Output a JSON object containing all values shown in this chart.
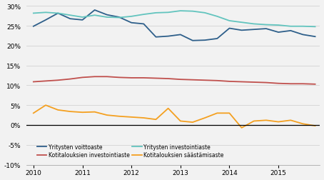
{
  "title": "",
  "ylim": [
    -0.1,
    0.305
  ],
  "yticks": [
    -0.1,
    -0.05,
    0.0,
    0.05,
    0.1,
    0.15,
    0.2,
    0.25,
    0.3
  ],
  "xlim": [
    2009.85,
    2015.85
  ],
  "xtick_labels": [
    "2010",
    "2011",
    "2012",
    "2013",
    "2014",
    "2015"
  ],
  "xtick_positions": [
    2010,
    2011,
    2012,
    2013,
    2014,
    2015
  ],
  "colors": {
    "yritys_voitto": "#2e5f8a",
    "yritys_investointi": "#62c4be",
    "kotitalous_investointi": "#c0504d",
    "kotitalous_saastamis": "#f4a020"
  },
  "legend": {
    "yritys_voitto": "Yritysten voittoaste",
    "yritys_investointi": "Yritysten investointiaste",
    "kotitalous_investointi": "Kotitalouksien investointiaste",
    "kotitalous_saastamis": "Kotitalouksien säästämisaste"
  },
  "bg_color": "#f2f2f2",
  "x": [
    2010.0,
    2010.25,
    2010.5,
    2010.75,
    2011.0,
    2011.25,
    2011.5,
    2011.75,
    2012.0,
    2012.25,
    2012.5,
    2012.75,
    2013.0,
    2013.25,
    2013.5,
    2013.75,
    2014.0,
    2014.25,
    2014.5,
    2014.75,
    2015.0,
    2015.25,
    2015.5,
    2015.75
  ],
  "yritys_voitto": [
    0.249,
    0.265,
    0.282,
    0.268,
    0.265,
    0.29,
    0.278,
    0.272,
    0.258,
    0.255,
    0.222,
    0.224,
    0.228,
    0.213,
    0.214,
    0.218,
    0.244,
    0.239,
    0.241,
    0.243,
    0.234,
    0.238,
    0.228,
    0.223
  ],
  "yritys_investointi": [
    0.282,
    0.284,
    0.282,
    0.277,
    0.272,
    0.277,
    0.272,
    0.271,
    0.274,
    0.279,
    0.283,
    0.284,
    0.288,
    0.287,
    0.283,
    0.274,
    0.263,
    0.259,
    0.255,
    0.253,
    0.252,
    0.249,
    0.249,
    0.248
  ],
  "kotitalous_investointi": [
    0.109,
    0.111,
    0.113,
    0.116,
    0.12,
    0.122,
    0.122,
    0.12,
    0.119,
    0.119,
    0.118,
    0.117,
    0.115,
    0.114,
    0.113,
    0.112,
    0.11,
    0.109,
    0.108,
    0.107,
    0.105,
    0.104,
    0.104,
    0.103
  ],
  "kotitalous_saastamis": [
    0.03,
    0.05,
    0.038,
    0.034,
    0.032,
    0.033,
    0.025,
    0.022,
    0.02,
    0.018,
    0.014,
    0.042,
    0.01,
    0.007,
    0.018,
    0.03,
    0.03,
    -0.007,
    0.01,
    0.012,
    0.008,
    0.012,
    0.003,
    -0.002
  ]
}
